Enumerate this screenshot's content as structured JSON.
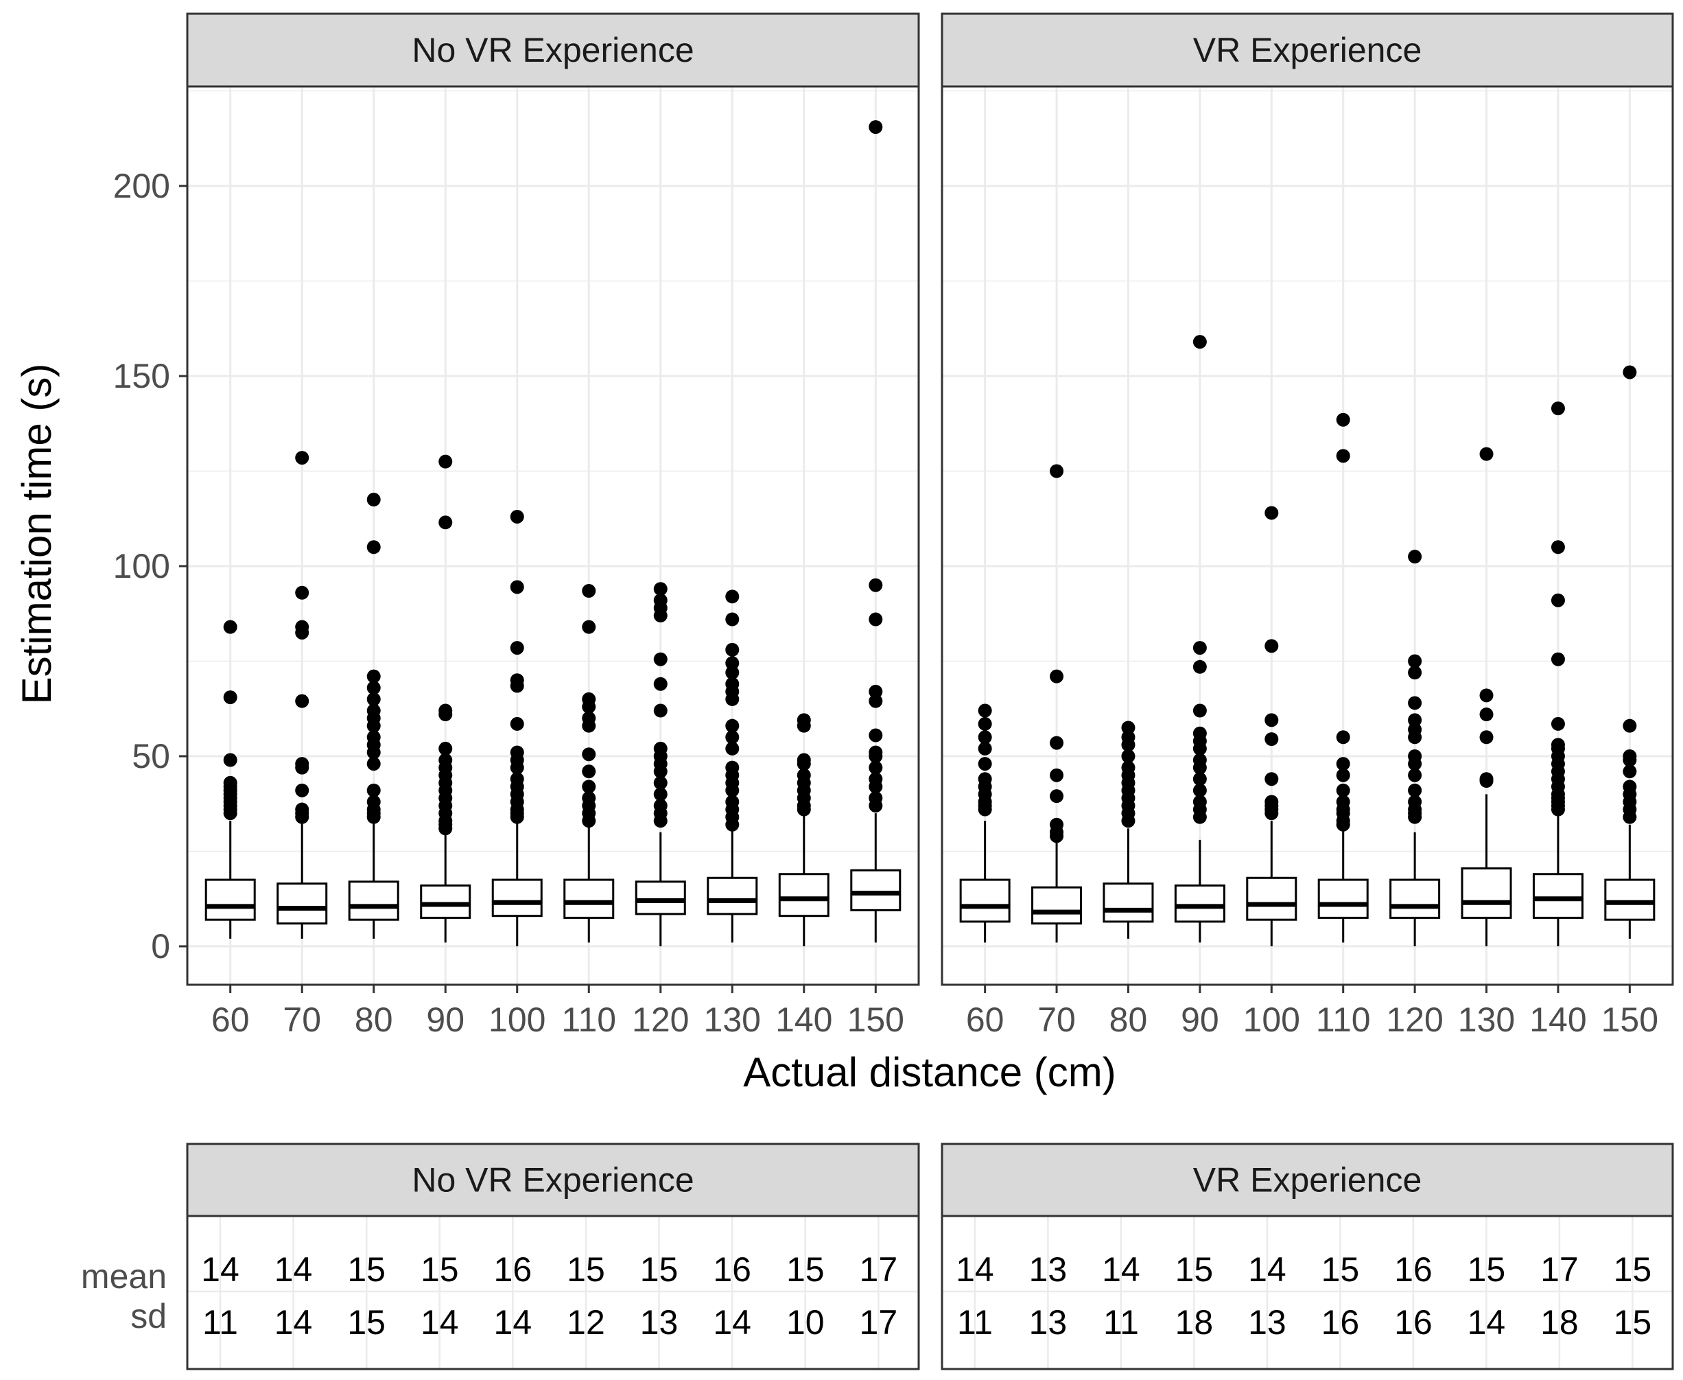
{
  "chart_data": {
    "type": "boxplot",
    "xlabel": "Actual distance (cm)",
    "ylabel": "Estimation time (s)",
    "ylim": [
      -10,
      225
    ],
    "yticks": [
      0,
      50,
      100,
      150,
      200
    ],
    "categories": [
      "60",
      "70",
      "80",
      "90",
      "100",
      "110",
      "120",
      "130",
      "140",
      "150"
    ],
    "panels": [
      {
        "title": "No VR Experience",
        "boxes": [
          {
            "lo": 2,
            "q1": 7,
            "median": 10.5,
            "q3": 17.5,
            "hi": 33,
            "outliers": [
              35,
              36,
              37,
              38,
              39,
              40,
              41,
              42,
              43,
              49,
              65.5,
              84
            ]
          },
          {
            "lo": 2,
            "q1": 6,
            "median": 10,
            "q3": 16.5,
            "hi": 33,
            "outliers": [
              34,
              35,
              36,
              41,
              47,
              48,
              64.5,
              82.5,
              84,
              93,
              128.5
            ]
          },
          {
            "lo": 2,
            "q1": 7,
            "median": 10.5,
            "q3": 17,
            "hi": 33,
            "outliers": [
              34,
              35,
              36,
              38,
              41,
              48,
              51,
              53,
              55,
              58,
              60,
              62,
              65,
              68,
              71,
              105,
              117.5
            ]
          },
          {
            "lo": 1,
            "q1": 7.5,
            "median": 11,
            "q3": 16,
            "hi": 30,
            "outliers": [
              31,
              32,
              33,
              35,
              37,
              39,
              41,
              43,
              45,
              47,
              49,
              52,
              61,
              62,
              111.5,
              127.5
            ]
          },
          {
            "lo": 0,
            "q1": 8,
            "median": 11.5,
            "q3": 17.5,
            "hi": 33,
            "outliers": [
              34,
              35,
              36,
              38,
              40,
              42,
              44,
              47,
              49,
              51,
              58.5,
              68.5,
              70,
              78.5,
              94.5,
              113
            ]
          },
          {
            "lo": 1,
            "q1": 7.5,
            "median": 11.5,
            "q3": 17.5,
            "hi": 32,
            "outliers": [
              33,
              35,
              37,
              39,
              42,
              46,
              50.5,
              58,
              60,
              63,
              65,
              84,
              93.5
            ]
          },
          {
            "lo": 0,
            "q1": 8.5,
            "median": 12,
            "q3": 17,
            "hi": 30,
            "outliers": [
              33,
              35,
              37,
              40,
              43,
              46,
              48,
              50,
              52,
              62,
              69,
              75.5,
              87,
              89,
              91,
              94
            ]
          },
          {
            "lo": 1,
            "q1": 8.5,
            "median": 12,
            "q3": 18,
            "hi": 31,
            "outliers": [
              32,
              34,
              36,
              38,
              41,
              43,
              45,
              47,
              52,
              55,
              58,
              65,
              67,
              69,
              72,
              74.5,
              78,
              86,
              92
            ]
          },
          {
            "lo": 0,
            "q1": 8,
            "median": 12.5,
            "q3": 19,
            "hi": 35,
            "outliers": [
              36,
              37,
              39,
              41,
              43,
              45,
              48,
              49,
              58,
              59.5
            ]
          },
          {
            "lo": 1,
            "q1": 9.5,
            "median": 14,
            "q3": 20,
            "hi": 35,
            "outliers": [
              37,
              39,
              42,
              44,
              47,
              50,
              51,
              55.5,
              64.5,
              67,
              86,
              95,
              215.5
            ]
          }
        ],
        "stats": {
          "mean": [
            14,
            14,
            15,
            15,
            16,
            15,
            15,
            16,
            15,
            17
          ],
          "sd": [
            11,
            14,
            15,
            14,
            14,
            12,
            13,
            14,
            10,
            17
          ]
        }
      },
      {
        "title": "VR Experience",
        "boxes": [
          {
            "lo": 1,
            "q1": 6.5,
            "median": 10.5,
            "q3": 17.5,
            "hi": 33,
            "outliers": [
              36,
              37,
              38,
              40,
              42,
              44,
              48,
              52,
              55,
              58.5,
              62
            ]
          },
          {
            "lo": 1,
            "q1": 6,
            "median": 9,
            "q3": 15.5,
            "hi": 28,
            "outliers": [
              29,
              30,
              32,
              39.5,
              45,
              53.5,
              71,
              125
            ]
          },
          {
            "lo": 2,
            "q1": 6.5,
            "median": 9.5,
            "q3": 16.5,
            "hi": 31,
            "outliers": [
              33,
              35,
              37,
              39,
              41,
              43,
              45,
              47,
              50,
              53,
              55,
              57.5
            ]
          },
          {
            "lo": 1,
            "q1": 6.5,
            "median": 10.5,
            "q3": 16,
            "hi": 28,
            "outliers": [
              34,
              36,
              38,
              41,
              44,
              47,
              49,
              52,
              54,
              56,
              62,
              73.5,
              78.5,
              159
            ]
          },
          {
            "lo": 0,
            "q1": 7,
            "median": 11,
            "q3": 18,
            "hi": 33,
            "outliers": [
              35,
              36,
              37,
              38,
              44,
              54.5,
              59.5,
              79,
              114
            ]
          },
          {
            "lo": 1,
            "q1": 7.5,
            "median": 11,
            "q3": 17.5,
            "hi": 31,
            "outliers": [
              32,
              33,
              35,
              36,
              38,
              41,
              45,
              48,
              55,
              129,
              138.5
            ]
          },
          {
            "lo": 0,
            "q1": 7.5,
            "median": 10.5,
            "q3": 17.5,
            "hi": 30,
            "outliers": [
              34,
              35,
              36,
              38,
              41,
              45,
              48,
              50,
              55,
              57,
              59.5,
              64,
              72,
              75,
              102.5
            ]
          },
          {
            "lo": 0,
            "q1": 7.5,
            "median": 11.5,
            "q3": 20.5,
            "hi": 40,
            "outliers": [
              43.5,
              44,
              55,
              61,
              66,
              129.5
            ]
          },
          {
            "lo": 0,
            "q1": 7.5,
            "median": 12.5,
            "q3": 19,
            "hi": 35,
            "outliers": [
              36,
              37,
              38,
              39,
              40,
              42,
              44,
              46,
              48,
              50,
              52,
              53,
              58.5,
              75.5,
              91,
              105,
              141.5
            ]
          },
          {
            "lo": 2,
            "q1": 7,
            "median": 11.5,
            "q3": 17.5,
            "hi": 32,
            "outliers": [
              34,
              36,
              38,
              40,
              42,
              46,
              49,
              50,
              58,
              151
            ]
          }
        ],
        "stats": {
          "mean": [
            14,
            13,
            14,
            15,
            14,
            15,
            16,
            15,
            17,
            15
          ],
          "sd": [
            11,
            13,
            11,
            18,
            13,
            16,
            16,
            14,
            18,
            15
          ]
        }
      }
    ],
    "stat_rows": [
      "mean",
      "sd"
    ]
  },
  "colors": {
    "strip_fill": "#d9d9d9",
    "grid": "#ebebeb",
    "frame": "#333333",
    "box": "#000000",
    "tick_text": "#4d4d4d"
  }
}
